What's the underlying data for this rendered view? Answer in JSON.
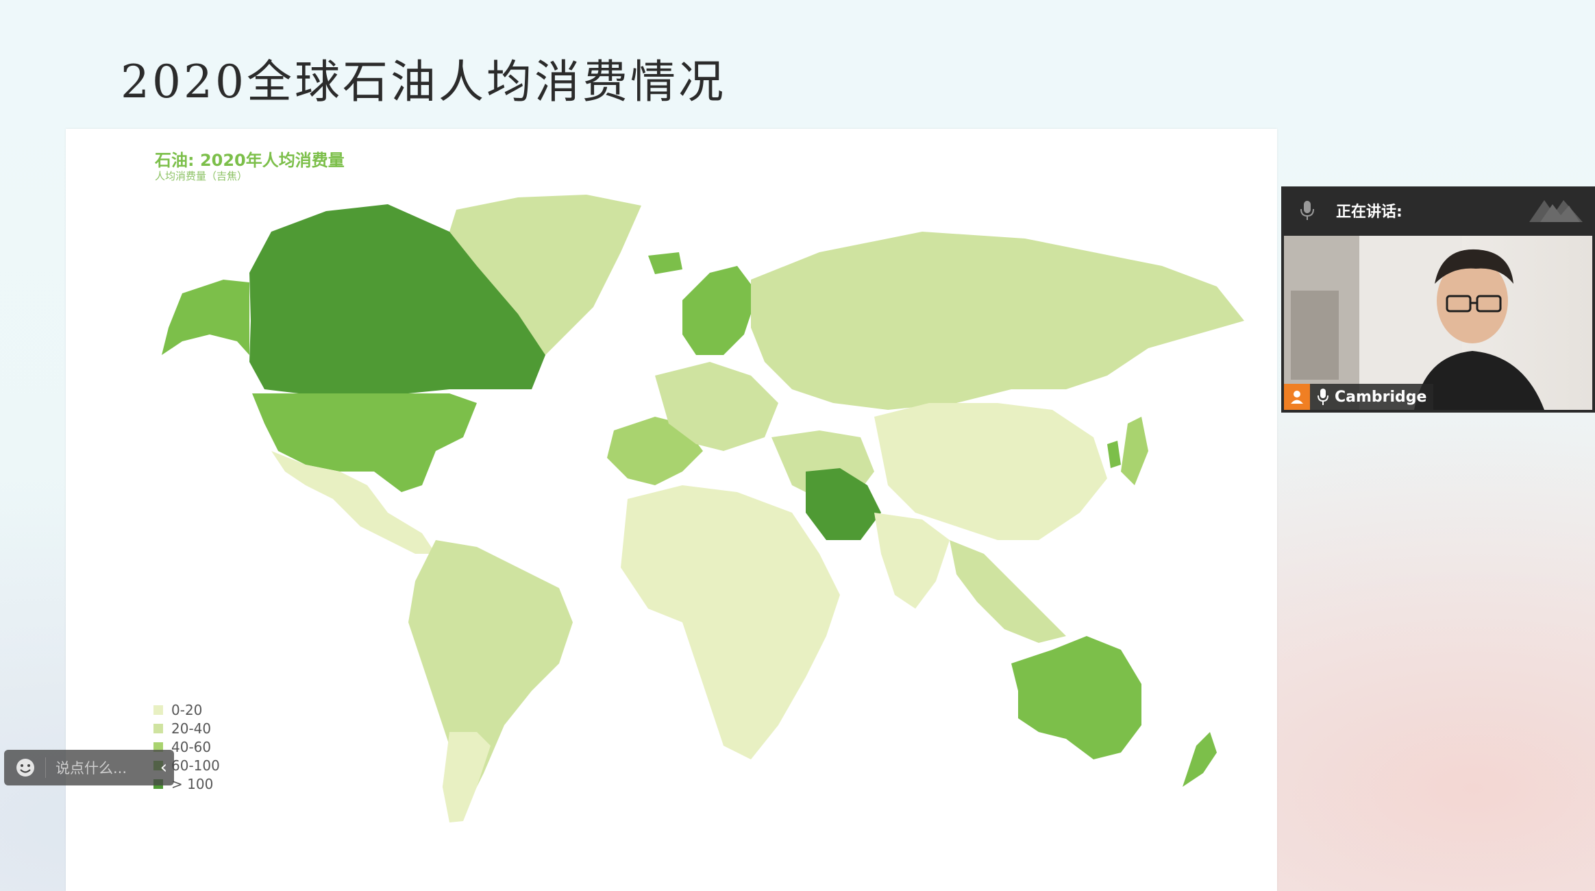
{
  "slide": {
    "title": "2020全球石油人均消费情况"
  },
  "map": {
    "title": "石油: 2020年人均消费量",
    "subtitle": "人均消费量（吉焦）",
    "colors": {
      "0-20": "#e8f0c2",
      "20-40": "#cfe3a0",
      "40-60": "#a9d36f",
      "60-100": "#7cbf4a",
      "gt-100": "#4f9a34",
      "ocean": "#ffffff"
    },
    "legend": [
      {
        "label": "0-20",
        "color": "#e8f0c2"
      },
      {
        "label": "20-40",
        "color": "#cfe3a0"
      },
      {
        "label": "40-60",
        "color": "#a9d36f"
      },
      {
        "label": "60-100",
        "color": "#7cbf4a"
      },
      {
        "label": "> 100",
        "color": "#4f9a34"
      }
    ]
  },
  "comment": {
    "placeholder": "说点什么...",
    "collapse_glyph": "‹"
  },
  "video": {
    "header_label": "正在讲话:",
    "speaker_name": "Cambridge"
  }
}
